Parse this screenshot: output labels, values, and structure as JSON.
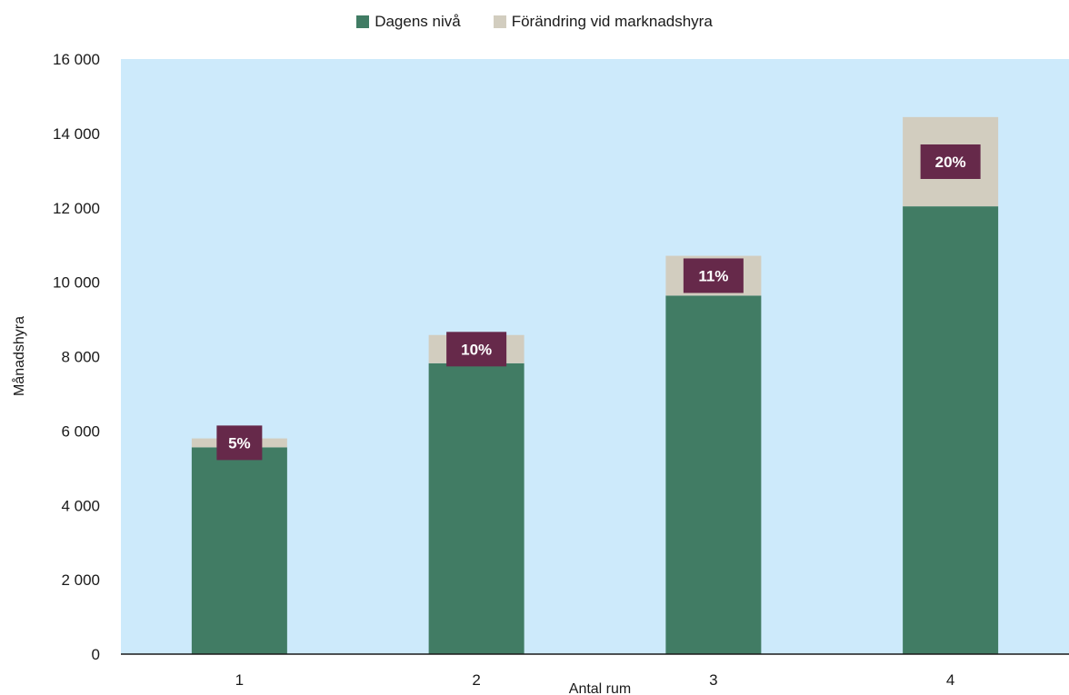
{
  "chart_data": {
    "type": "bar",
    "stacked": true,
    "categories": [
      "1",
      "2",
      "3",
      "4"
    ],
    "series": [
      {
        "name": "Dagens nivå",
        "values": [
          5560,
          7820,
          9640,
          12040
        ]
      },
      {
        "name": "Förändring vid marknadshyra",
        "values": [
          240,
          760,
          1070,
          2400
        ]
      }
    ],
    "data_labels": [
      "5%",
      "10%",
      "11%",
      "20%"
    ],
    "xlabel": "Antal rum",
    "ylabel": "Månadshyra",
    "ylim": [
      0,
      16000
    ],
    "yticks": [
      0,
      2000,
      4000,
      6000,
      8000,
      10000,
      12000,
      14000,
      16000
    ],
    "ytick_labels": [
      "0",
      "2 000",
      "4 000",
      "6 000",
      "8 000",
      "10 000",
      "12 000",
      "14 000",
      "16 000"
    ],
    "grid": false,
    "legend_position": "top-center",
    "colors": {
      "plot_background": "#cdeafb",
      "series": [
        "#417c64",
        "#d2cdbf"
      ],
      "label_box": "#66294a",
      "axis": "#1a1a1a"
    }
  }
}
